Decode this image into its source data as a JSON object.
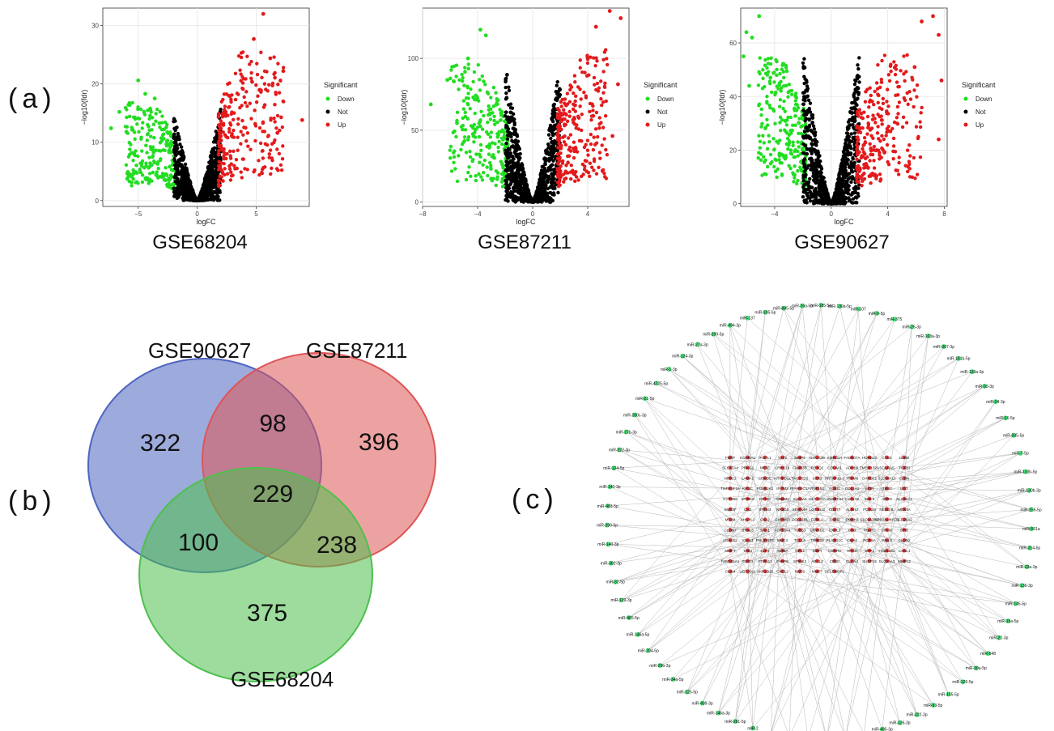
{
  "panel_labels": {
    "a": "(a)",
    "b": "(b)",
    "c": "(c)"
  },
  "colors": {
    "down": "#22dd22",
    "not": "#000000",
    "up": "#e31a1c",
    "venn_blue": "#4d64c0",
    "venn_red": "#de5555",
    "venn_green": "#4dc04d",
    "network_edge": "#b8b8b8",
    "mirna_node": "#49e07a",
    "gene_node": "#e23b3b"
  },
  "legend": {
    "title": "Significant",
    "items": [
      "Down",
      "Not",
      "Up"
    ]
  },
  "chart_data": [
    {
      "type": "scatter",
      "title": "GSE68204",
      "xlabel": "logFC",
      "ylabel": "−log10(fdr)",
      "xlim": [
        -8,
        9.5
      ],
      "ylim": [
        -1,
        33
      ],
      "xticks": [
        -5,
        0,
        5
      ],
      "yticks": [
        0,
        10,
        20,
        30
      ],
      "grid": true,
      "legend": "right",
      "series": [
        {
          "name": "Down",
          "shape": "fan",
          "x_range": [
            -7.5,
            -1.8
          ],
          "y_max": 21,
          "outliers": [
            [
              -7.3,
              12.4
            ],
            [
              -6.6,
              15.2
            ],
            [
              -6.0,
              11.8
            ],
            [
              -5.0,
              20.6
            ],
            [
              -4.4,
              18.3
            ],
            [
              -3.6,
              17.5
            ]
          ]
        },
        {
          "name": "Not",
          "shape": "v",
          "x_range": [
            -2.0,
            2.0
          ],
          "y_max": 16
        },
        {
          "name": "Up",
          "shape": "fan",
          "x_range": [
            1.8,
            9.2
          ],
          "y_max": 32,
          "outliers": [
            [
              5.6,
              32.0
            ],
            [
              4.8,
              27.7
            ],
            [
              6.2,
              24.4
            ],
            [
              7.3,
              22.2
            ],
            [
              8.9,
              13.8
            ],
            [
              6.8,
              11.6
            ],
            [
              5.3,
              19.0
            ]
          ]
        }
      ]
    },
    {
      "type": "scatter",
      "title": "GSE87211",
      "xlabel": "logFC",
      "ylabel": "−log10(fdr)",
      "xlim": [
        -8,
        7
      ],
      "ylim": [
        -3,
        135
      ],
      "xticks": [
        -8,
        -4,
        0,
        4
      ],
      "yticks": [
        0,
        50,
        100
      ],
      "grid": true,
      "legend": "right",
      "series": [
        {
          "name": "Down",
          "shape": "fan",
          "x_range": [
            -7.5,
            -1.8
          ],
          "y_max": 120,
          "outliers": [
            [
              -7.4,
              68.0
            ],
            [
              -6.2,
              85.0
            ],
            [
              -5.5,
              55.0
            ],
            [
              -3.8,
              120.0
            ],
            [
              -3.4,
              116.0
            ],
            [
              -4.7,
              100.0
            ]
          ]
        },
        {
          "name": "Not",
          "shape": "v",
          "x_range": [
            -2.0,
            2.0
          ],
          "y_max": 98
        },
        {
          "name": "Up",
          "shape": "fan",
          "x_range": [
            1.8,
            6.7
          ],
          "y_max": 133,
          "outliers": [
            [
              5.6,
              133.0
            ],
            [
              6.4,
              128.0
            ],
            [
              4.6,
              122.0
            ],
            [
              6.2,
              82.0
            ],
            [
              5.8,
              46.0
            ],
            [
              4.4,
              60.0
            ]
          ]
        }
      ]
    },
    {
      "type": "scatter",
      "title": "GSE90627",
      "xlabel": "logFC",
      "ylabel": "−log10(fdr)",
      "xlim": [
        -6.4,
        8.2
      ],
      "ylim": [
        -1,
        73
      ],
      "xticks": [
        -4,
        0,
        4,
        8
      ],
      "yticks": [
        0,
        20,
        40,
        60
      ],
      "grid": true,
      "legend": "right",
      "series": [
        {
          "name": "Down",
          "shape": "fan",
          "x_range": [
            -6.3,
            -1.8
          ],
          "y_max": 70,
          "outliers": [
            [
              -5.1,
              70.0
            ],
            [
              -6.0,
              64.0
            ],
            [
              -5.6,
              62.0
            ],
            [
              -6.2,
              55.0
            ],
            [
              -5.8,
              44.0
            ],
            [
              -4.3,
              47.0
            ]
          ]
        },
        {
          "name": "Not",
          "shape": "v",
          "x_range": [
            -2.0,
            2.0
          ],
          "y_max": 58
        },
        {
          "name": "Up",
          "shape": "fan",
          "x_range": [
            1.8,
            8.0
          ],
          "y_max": 70,
          "outliers": [
            [
              7.2,
              70.0
            ],
            [
              7.6,
              63.0
            ],
            [
              7.8,
              46.0
            ],
            [
              7.6,
              24.0
            ],
            [
              5.9,
              51.0
            ],
            [
              6.4,
              68.0
            ]
          ]
        }
      ]
    },
    {
      "type": "venn",
      "sets": [
        "GSE90627",
        "GSE87211",
        "GSE68204"
      ],
      "regions": {
        "GSE90627_only": 322,
        "GSE87211_only": 396,
        "GSE68204_only": 375,
        "GSE90627_GSE87211": 98,
        "GSE90627_GSE68204": 100,
        "GSE87211_GSE68204": 238,
        "all_three": 229
      }
    },
    {
      "type": "network",
      "mirnas": [
        "miR-26a-5p",
        "miR-185-5p",
        "miR-130a-5p",
        "miR-107",
        "miR-9-5p",
        "miR-375",
        "miR-25-3p",
        "miR-103a-3p",
        "miR-367-3p",
        "miR-181b-5p",
        "miR-133a-3p",
        "miR-93-3p",
        "miR-24-3p",
        "miR-16-5p",
        "miR-335-5p",
        "miR-7-5p",
        "miR-133b-5p",
        "miR-130b-3p",
        "miR-155-5p",
        "miR-551a",
        "miR-214-5p",
        "miR-23a-3p",
        "miR-136-3p",
        "miR-145-5p",
        "miR-15a-5p",
        "miR-22-3p",
        "miR-548",
        "miR-30a-5p",
        "miR-129-5p",
        "miR-155-5p",
        "miR-93-5p",
        "miR-222-3p",
        "miR-126-3p",
        "miR-495-3p",
        "miR-200b-3p",
        "miR-203a-3p",
        "miR-299-5p",
        "miR-127-5p",
        "miR-126a-5p",
        "miR-259-3p",
        "miR-2",
        "miR-281-5p",
        "miR-146a-3p",
        "miR-409-3p",
        "miR-125-5p",
        "miR-34a-5p",
        "miR-29b-3p",
        "miR-204-5p",
        "miR-146a-5p",
        "miR-485-5p",
        "miR-129-3p",
        "miR-32-5p",
        "miR-362-3p",
        "miR-140-3p",
        "miR-299-5p",
        "miR-483-5p",
        "miR-140-3p",
        "miR-124-5p",
        "miR-222-3p",
        "miR-27b-3p",
        "miR-200c-3p",
        "miR-21-5p",
        "miR-4725-5p",
        "miR-1-3p",
        "miR-124-3p",
        "miR-27a-3p",
        "miR-199-5p",
        "miR-494-3p",
        "miR-137",
        "miR-105-5p",
        "miR-885-5p"
      ],
      "genes": [
        [
          "FBXP",
          "KCNMA1",
          "IFI27L1",
          "YAP2",
          "MMP3",
          "GUCA2B",
          "SMPD3A",
          "FAM107A",
          "HOXB13",
          "CTSE",
          "LDHD"
        ],
        [
          "SLC17A4",
          "PRKG1",
          "MT1E",
          "LRRC19",
          "FAM83B",
          "FOXQ2",
          "COL4A1",
          "ADH1B",
          "TMEM132A",
          "SCARA5",
          "TGFBI"
        ],
        [
          "NR3C2",
          "LAMA1",
          "CRNDE",
          "MTHFD1L",
          "TACSTD2",
          "SSR2",
          "KRTAP13-2",
          "TRPM6",
          "CHRDL1",
          "SLC30A10",
          "CLDN"
        ],
        [
          "TNFRSF19",
          "KIF3C",
          "POLR2A1",
          "IFITM2",
          "PPARGC1A",
          "RNF152",
          "FOXI1",
          "COL1A1",
          "SCIN",
          "ITM2C",
          "UGT"
        ],
        [
          "CYP2B6",
          "SPINK5",
          "KRT80",
          "GREM2",
          "SLC9A2",
          "HLA-DOA",
          "ADAMTS4",
          "CXCL12",
          "INSL5",
          "AEBG",
          "SLC26A1"
        ],
        [
          "SMS3F",
          "CA2",
          "IFITM3",
          "NR3C2",
          "SEMA4A",
          "LGT2B10",
          "CD177",
          "ALDH3",
          "FOXG3",
          "NEDD4L",
          "MEX3A"
        ],
        [
          "MT1M",
          "AHCYL2",
          "CA12",
          "CAPNS3",
          "COL22B1",
          "FCRLA",
          "PADI2",
          "DMXH3",
          "SLC9A3R1",
          "ST6GALNAC1",
          "SLC26A2"
        ],
        [
          "CLDN7",
          "BTNL3",
          "SAA1",
          "ATP13A4",
          "TUBB3",
          "CRYAB2",
          "CXCL3",
          "CKB",
          "PSAT1",
          "CHGA",
          "SPIB"
        ],
        [
          "LGALS2",
          "VSNL1",
          "PNLIPRP2",
          "MUC4",
          "TCL1A",
          "TRIM29",
          "PLA2G1C",
          "CMA4",
          "PCBSA",
          "INSL4",
          "CLDN2"
        ],
        [
          "MMP7",
          "TAB4",
          "KLF4",
          "INHBA",
          "GP12",
          "MDFI",
          "CDHR5",
          "HPGD",
          "SPP1",
          "HSD11B2",
          "CXCL1"
        ],
        [
          "FAM185A1",
          "TIMD3",
          "PTPN13",
          "FABP6",
          "SPINK2",
          "ABCL2",
          "CD3G",
          "CLCA4",
          "SUCP15",
          "SLC26A3",
          "MMP12"
        ],
        [
          "CLIS4",
          "UGT2B11",
          "AKR1B10",
          "CXCL2",
          "NKD2",
          "MMP7",
          "SELENOP1"
        ]
      ]
    }
  ]
}
